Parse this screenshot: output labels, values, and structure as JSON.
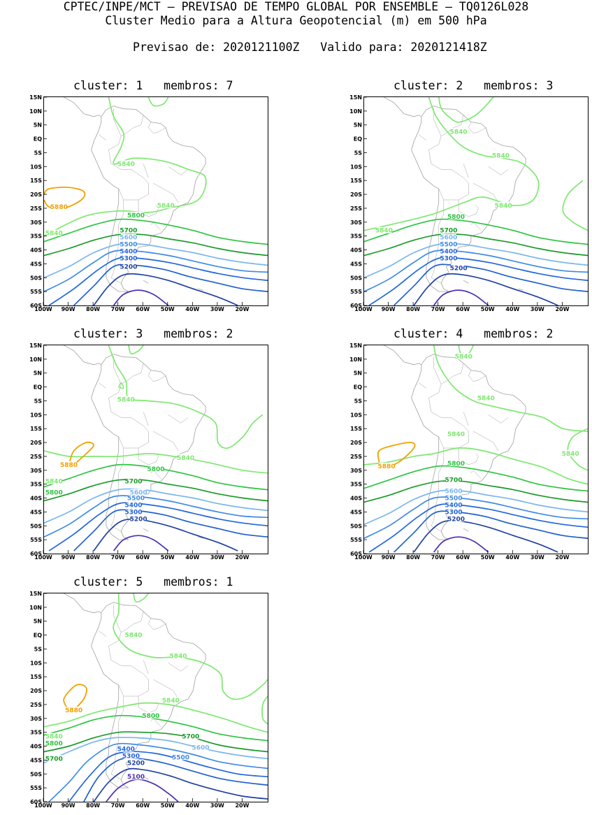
{
  "header": {
    "line1": "CPTEC/INPE/MCT – PREVISAO DE TEMPO GLOBAL POR ENSEMBLE – TQ0126L028",
    "line2": "Cluster Medio para a Altura Geopotencial (m) em 500 hPa",
    "line3_left": "Previsao de: 2020121100Z",
    "line3_right": "Valido para: 2020121418Z"
  },
  "axes": {
    "lat_ticks": [
      "15N",
      "10N",
      "5N",
      "EQ",
      "5S",
      "10S",
      "15S",
      "20S",
      "25S",
      "30S",
      "35S",
      "40S",
      "45S",
      "50S",
      "55S",
      "60S"
    ],
    "lon_ticks": [
      "100W",
      "90W",
      "80W",
      "70W",
      "60W",
      "50W",
      "40W",
      "30W",
      "20W"
    ]
  },
  "colors": {
    "c5100": "#4b2fb0",
    "c5200": "#2040a0",
    "c5300": "#1f5fcf",
    "c5400": "#2266dd",
    "c5500": "#3f8ae6",
    "c5600": "#7ab6f0",
    "c5700": "#1a9a2a",
    "c5800": "#2dc440",
    "c5840": "#7ee870",
    "c5880": "#f2a000",
    "coast": "#a0a0a0"
  },
  "chart_data": [
    {
      "type": "map",
      "title": "cluster: 1   membros: 7",
      "cluster": 1,
      "membros": 7,
      "contour_labels": [
        "5880",
        "5840",
        "5840",
        "5840",
        "5800",
        "5700",
        "5600",
        "5500",
        "5400",
        "5300",
        "5200"
      ]
    },
    {
      "type": "map",
      "title": "cluster: 2   membros: 3",
      "cluster": 2,
      "membros": 3,
      "contour_labels": [
        "5840",
        "5840",
        "5840",
        "5840",
        "5800",
        "5700",
        "5600",
        "5500",
        "5400",
        "5300",
        "5200"
      ]
    },
    {
      "type": "map",
      "title": "cluster: 3   membros: 2",
      "cluster": 3,
      "membros": 2,
      "contour_labels": [
        "5840",
        "5880",
        "5840",
        "5840",
        "5800",
        "5800",
        "5700",
        "5600",
        "5500",
        "5400",
        "5300",
        "5200"
      ]
    },
    {
      "type": "map",
      "title": "cluster: 4   membros: 2",
      "cluster": 4,
      "membros": 2,
      "contour_labels": [
        "5840",
        "5840",
        "5840",
        "5880",
        "5840",
        "5800",
        "5700",
        "5600",
        "5500",
        "5400",
        "5300",
        "5200"
      ]
    },
    {
      "type": "map",
      "title": "cluster: 5   membros: 1",
      "cluster": 5,
      "membros": 1,
      "contour_labels": [
        "5840",
        "5840",
        "5880",
        "5840",
        "5800",
        "5840",
        "5800",
        "5700",
        "5700",
        "5600",
        "5500",
        "5400",
        "5300",
        "5200",
        "5100"
      ]
    }
  ]
}
